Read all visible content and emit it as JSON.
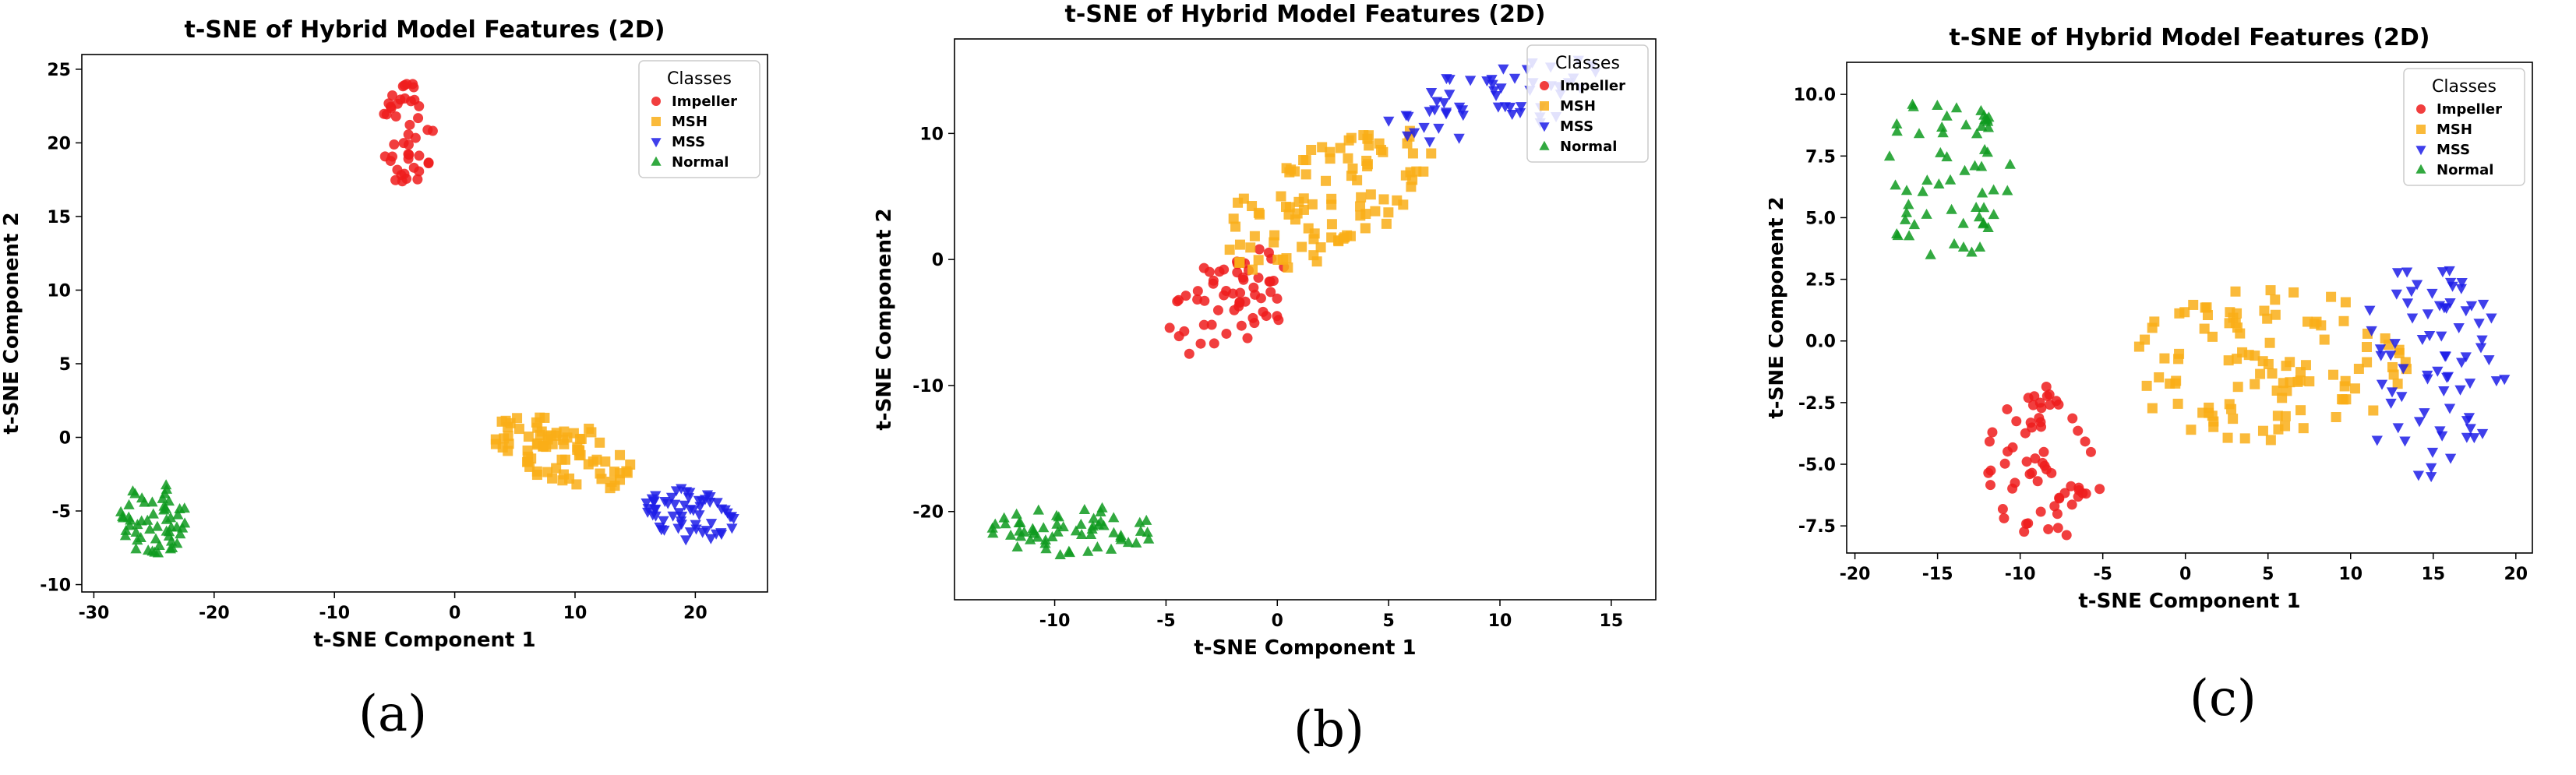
{
  "chart_data": [
    {
      "id": "a",
      "type": "scatter",
      "panel_label": "(a)",
      "title": "t-SNE of Hybrid Model Features (2D)",
      "xlabel": "t-SNE Component 1",
      "ylabel": "t-SNE Component 2",
      "xlim": [
        -31,
        26
      ],
      "ylim": [
        -10.5,
        26
      ],
      "xticks": [
        -30,
        -20,
        -10,
        0,
        10,
        20
      ],
      "yticks": [
        -10,
        -5,
        0,
        5,
        10,
        15,
        20,
        25
      ],
      "legend": {
        "title": "Classes",
        "position": "top-right",
        "entries": [
          "Impeller",
          "MSH",
          "MSS",
          "Normal"
        ]
      },
      "series": [
        {
          "name": "Impeller",
          "color": "#ee1c1c",
          "marker": "circle",
          "cluster": {
            "cx": -4,
            "cy": 20.5,
            "rx": 2.2,
            "ry": 3.6,
            "n": 45
          }
        },
        {
          "name": "MSH",
          "color": "#f9ae17",
          "marker": "square",
          "cluster": {
            "cx": 9,
            "cy": -1,
            "rx": 5.8,
            "ry": 2.3,
            "n": 80,
            "slope": -0.2
          }
        },
        {
          "name": "MSS",
          "color": "#1d1de8",
          "marker": "triangle-down",
          "cluster": {
            "cx": 19.5,
            "cy": -5.2,
            "rx": 3.8,
            "ry": 1.8,
            "n": 60,
            "slope": -0.15
          }
        },
        {
          "name": "Normal",
          "color": "#0e9a1f",
          "marker": "triangle-up",
          "cluster": {
            "cx": -25,
            "cy": -5.5,
            "rx": 2.8,
            "ry": 2.6,
            "n": 55
          }
        }
      ]
    },
    {
      "id": "b",
      "type": "scatter",
      "panel_label": "(b)",
      "title": "t-SNE of Hybrid Model Features (2D)",
      "xlabel": "t-SNE Component 1",
      "ylabel": "t-SNE Component 2",
      "xlim": [
        -14.5,
        17
      ],
      "ylim": [
        -27,
        17.5
      ],
      "xticks": [
        -10,
        -5,
        0,
        5,
        10,
        15
      ],
      "yticks": [
        -20,
        -10,
        0,
        10
      ],
      "legend": {
        "title": "Classes",
        "position": "top-right",
        "entries": [
          "Impeller",
          "MSH",
          "MSS",
          "Normal"
        ]
      },
      "series": [
        {
          "name": "Impeller",
          "color": "#ee1c1c",
          "marker": "circle",
          "cluster": {
            "cx": -2.2,
            "cy": -3.5,
            "rx": 2.8,
            "ry": 4.2,
            "n": 60,
            "slope": 0.5
          }
        },
        {
          "name": "MSH",
          "color": "#f9ae17",
          "marker": "square",
          "cluster": {
            "cx": 2,
            "cy": 4.5,
            "rx": 5,
            "ry": 5,
            "n": 100,
            "slope": 0.8
          }
        },
        {
          "name": "MSS",
          "color": "#1d1de8",
          "marker": "triangle-down",
          "cluster": {
            "cx": 9.5,
            "cy": 12.5,
            "rx": 5,
            "ry": 3,
            "n": 55,
            "slope": 0.4
          }
        },
        {
          "name": "Normal",
          "color": "#0e9a1f",
          "marker": "triangle-up",
          "cluster": {
            "cx": -9.3,
            "cy": -21.5,
            "rx": 3.8,
            "ry": 2,
            "n": 60
          }
        }
      ]
    },
    {
      "id": "c",
      "type": "scatter",
      "panel_label": "(c)",
      "title": "t-SNE of Hybrid Model Features (2D)",
      "xlabel": "t-SNE Component 1",
      "ylabel": "t-SNE Component 2",
      "xlim": [
        -20.5,
        21
      ],
      "ylim": [
        -8.6,
        11.3
      ],
      "xticks": [
        -20,
        -15,
        -10,
        -5,
        0,
        5,
        10,
        15,
        20
      ],
      "yticks": [
        -7.5,
        -5.0,
        -2.5,
        0.0,
        2.5,
        5.0,
        7.5,
        10.0
      ],
      "legend": {
        "title": "Classes",
        "position": "top-right",
        "entries": [
          "Impeller",
          "MSH",
          "MSS",
          "Normal"
        ]
      },
      "series": [
        {
          "name": "Impeller",
          "color": "#ee1c1c",
          "marker": "circle",
          "cluster": {
            "cx": -8.5,
            "cy": -5,
            "rx": 3.5,
            "ry": 3.2,
            "n": 65
          }
        },
        {
          "name": "MSH",
          "color": "#f9ae17",
          "marker": "square",
          "cluster": {
            "cx": 5,
            "cy": -1,
            "rx": 8.5,
            "ry": 3.2,
            "n": 110
          }
        },
        {
          "name": "MSS",
          "color": "#1d1de8",
          "marker": "triangle-down",
          "cluster": {
            "cx": 15,
            "cy": -1,
            "rx": 4.5,
            "ry": 4.6,
            "n": 75
          }
        },
        {
          "name": "Normal",
          "color": "#0e9a1f",
          "marker": "triangle-up",
          "cluster": {
            "cx": -14.5,
            "cy": 6.5,
            "rx": 4,
            "ry": 3.6,
            "n": 60
          }
        }
      ]
    }
  ]
}
